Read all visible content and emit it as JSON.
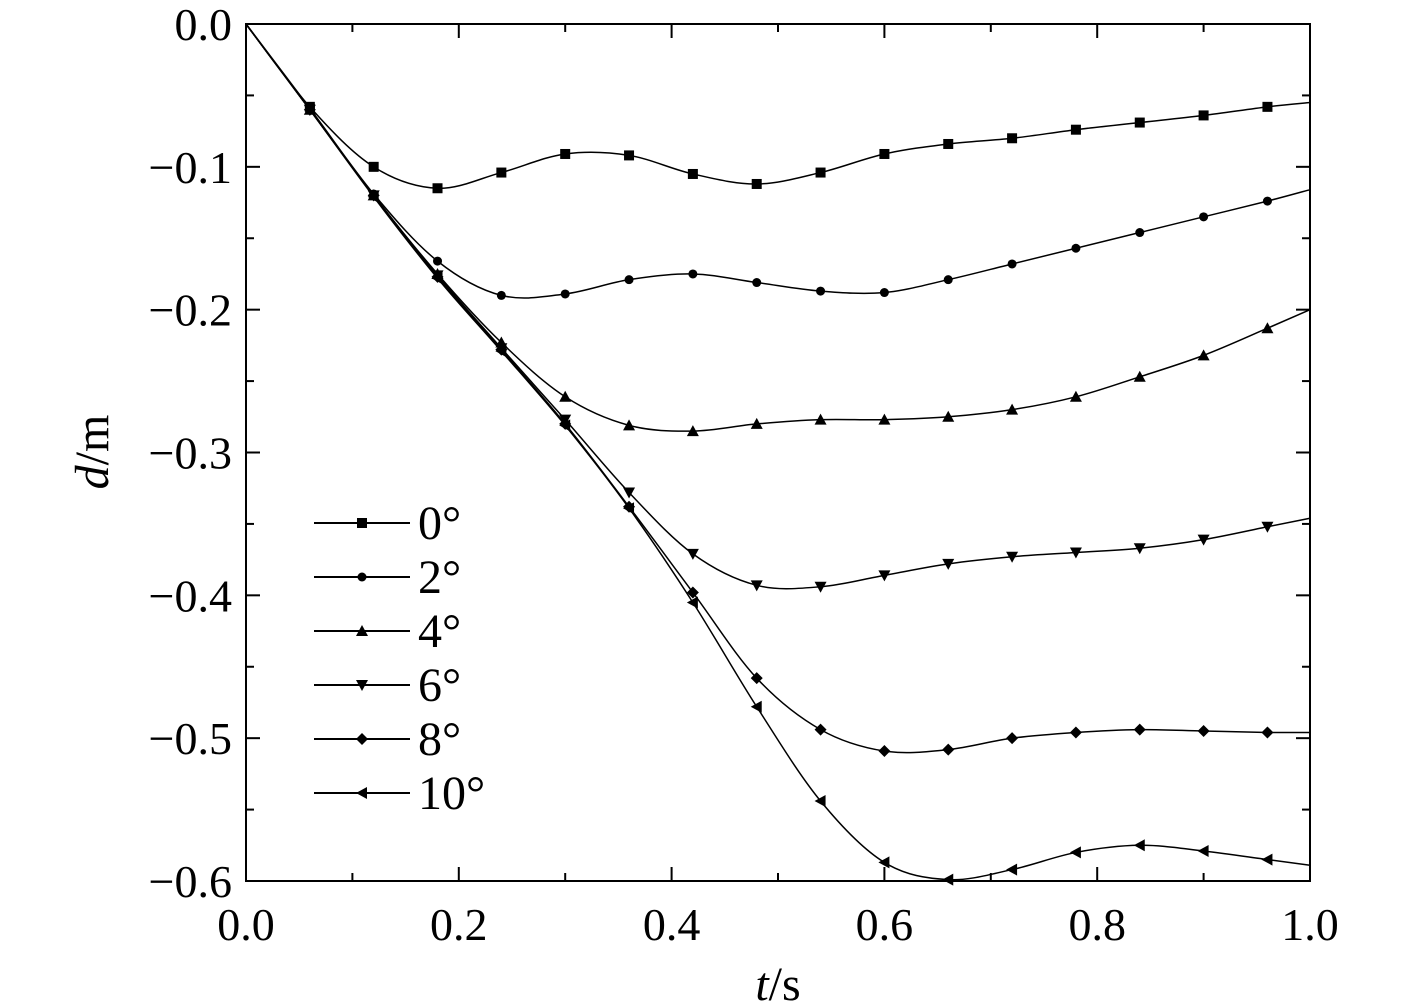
{
  "chart_data": {
    "type": "line",
    "xlabel_italic": "t",
    "xlabel_unit": "/s",
    "ylabel_italic": "d",
    "ylabel_unit": "/m",
    "xlim": [
      0,
      1.0
    ],
    "ylim": [
      -0.6,
      0.0
    ],
    "xticks": [
      "0.0",
      "0.2",
      "0.4",
      "0.6",
      "0.8",
      "1.0"
    ],
    "yticks": [
      "0.0",
      "−0.1",
      "−0.2",
      "−0.3",
      "−0.4",
      "−0.5",
      "−0.6"
    ],
    "legend_position": "lower-left",
    "grid": false,
    "x": [
      0,
      0.06,
      0.12,
      0.18,
      0.24,
      0.3,
      0.36,
      0.42,
      0.48,
      0.54,
      0.6,
      0.66,
      0.72,
      0.78,
      0.84,
      0.9,
      0.96,
      1.0
    ],
    "series": [
      {
        "name": "0°",
        "marker": "square",
        "values": [
          0,
          -0.058,
          -0.1,
          -0.115,
          -0.104,
          -0.091,
          -0.092,
          -0.105,
          -0.112,
          -0.104,
          -0.091,
          -0.084,
          -0.08,
          -0.074,
          -0.069,
          -0.064,
          -0.058,
          -0.055
        ]
      },
      {
        "name": "2°",
        "marker": "dot",
        "values": [
          0,
          -0.059,
          -0.119,
          -0.166,
          -0.19,
          -0.189,
          -0.179,
          -0.175,
          -0.181,
          -0.187,
          -0.188,
          -0.179,
          -0.168,
          -0.157,
          -0.146,
          -0.135,
          -0.124,
          -0.116
        ]
      },
      {
        "name": "4°",
        "marker": "triangle-up",
        "values": [
          0,
          -0.06,
          -0.12,
          -0.175,
          -0.223,
          -0.261,
          -0.281,
          -0.285,
          -0.28,
          -0.277,
          -0.277,
          -0.275,
          -0.27,
          -0.261,
          -0.247,
          -0.232,
          -0.213,
          -0.2
        ]
      },
      {
        "name": "6°",
        "marker": "triangle-down",
        "values": [
          0,
          -0.06,
          -0.12,
          -0.176,
          -0.227,
          -0.277,
          -0.328,
          -0.371,
          -0.393,
          -0.394,
          -0.386,
          -0.378,
          -0.373,
          -0.37,
          -0.367,
          -0.361,
          -0.352,
          -0.346
        ]
      },
      {
        "name": "8°",
        "marker": "diamond",
        "values": [
          0,
          -0.06,
          -0.12,
          -0.177,
          -0.228,
          -0.28,
          -0.338,
          -0.398,
          -0.458,
          -0.494,
          -0.509,
          -0.508,
          -0.5,
          -0.496,
          -0.494,
          -0.495,
          -0.496,
          -0.496
        ]
      },
      {
        "name": "10°",
        "marker": "triangle-left",
        "values": [
          0,
          -0.06,
          -0.121,
          -0.178,
          -0.229,
          -0.281,
          -0.339,
          -0.405,
          -0.478,
          -0.544,
          -0.587,
          -0.599,
          -0.592,
          -0.58,
          -0.575,
          -0.579,
          -0.585,
          -0.589
        ]
      }
    ]
  }
}
